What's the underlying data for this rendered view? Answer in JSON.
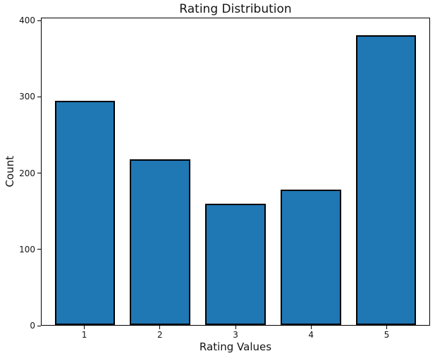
{
  "chart_data": {
    "type": "bar",
    "title": "Rating Distribution",
    "xlabel": "Rating Values",
    "ylabel": "Count",
    "categories": [
      "1",
      "2",
      "3",
      "4",
      "5"
    ],
    "values": [
      295,
      218,
      160,
      178,
      382
    ],
    "yticks": [
      0,
      100,
      200,
      300,
      400
    ],
    "ylim": [
      0,
      404
    ],
    "grid": false,
    "legend": null,
    "bar_color": "#1f77b4",
    "bar_edge_color": "#000000",
    "text_color": "#141414",
    "background_color": "#ffffff"
  }
}
